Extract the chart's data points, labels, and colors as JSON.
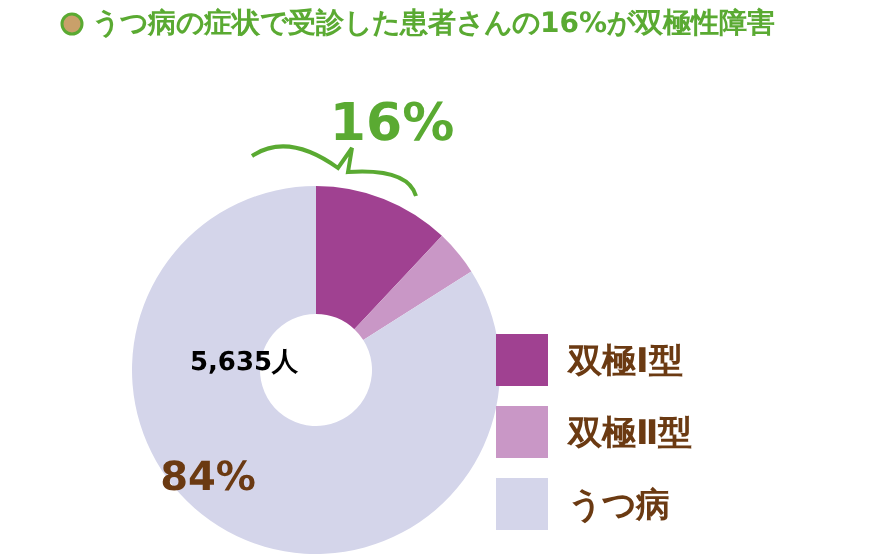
{
  "chart_data": {
    "type": "donut",
    "title": "うつ病の症状で受診した患者さんの16%が双極性障害",
    "categories": [
      "双極Ⅰ型",
      "双極Ⅱ型",
      "うつ病"
    ],
    "values": [
      12,
      4,
      84
    ],
    "colors": [
      "#a04191",
      "#c997c6",
      "#d4d5ea"
    ],
    "legend": "right",
    "annotations": [
      "16%",
      "84%",
      "5,635人"
    ]
  }
}
